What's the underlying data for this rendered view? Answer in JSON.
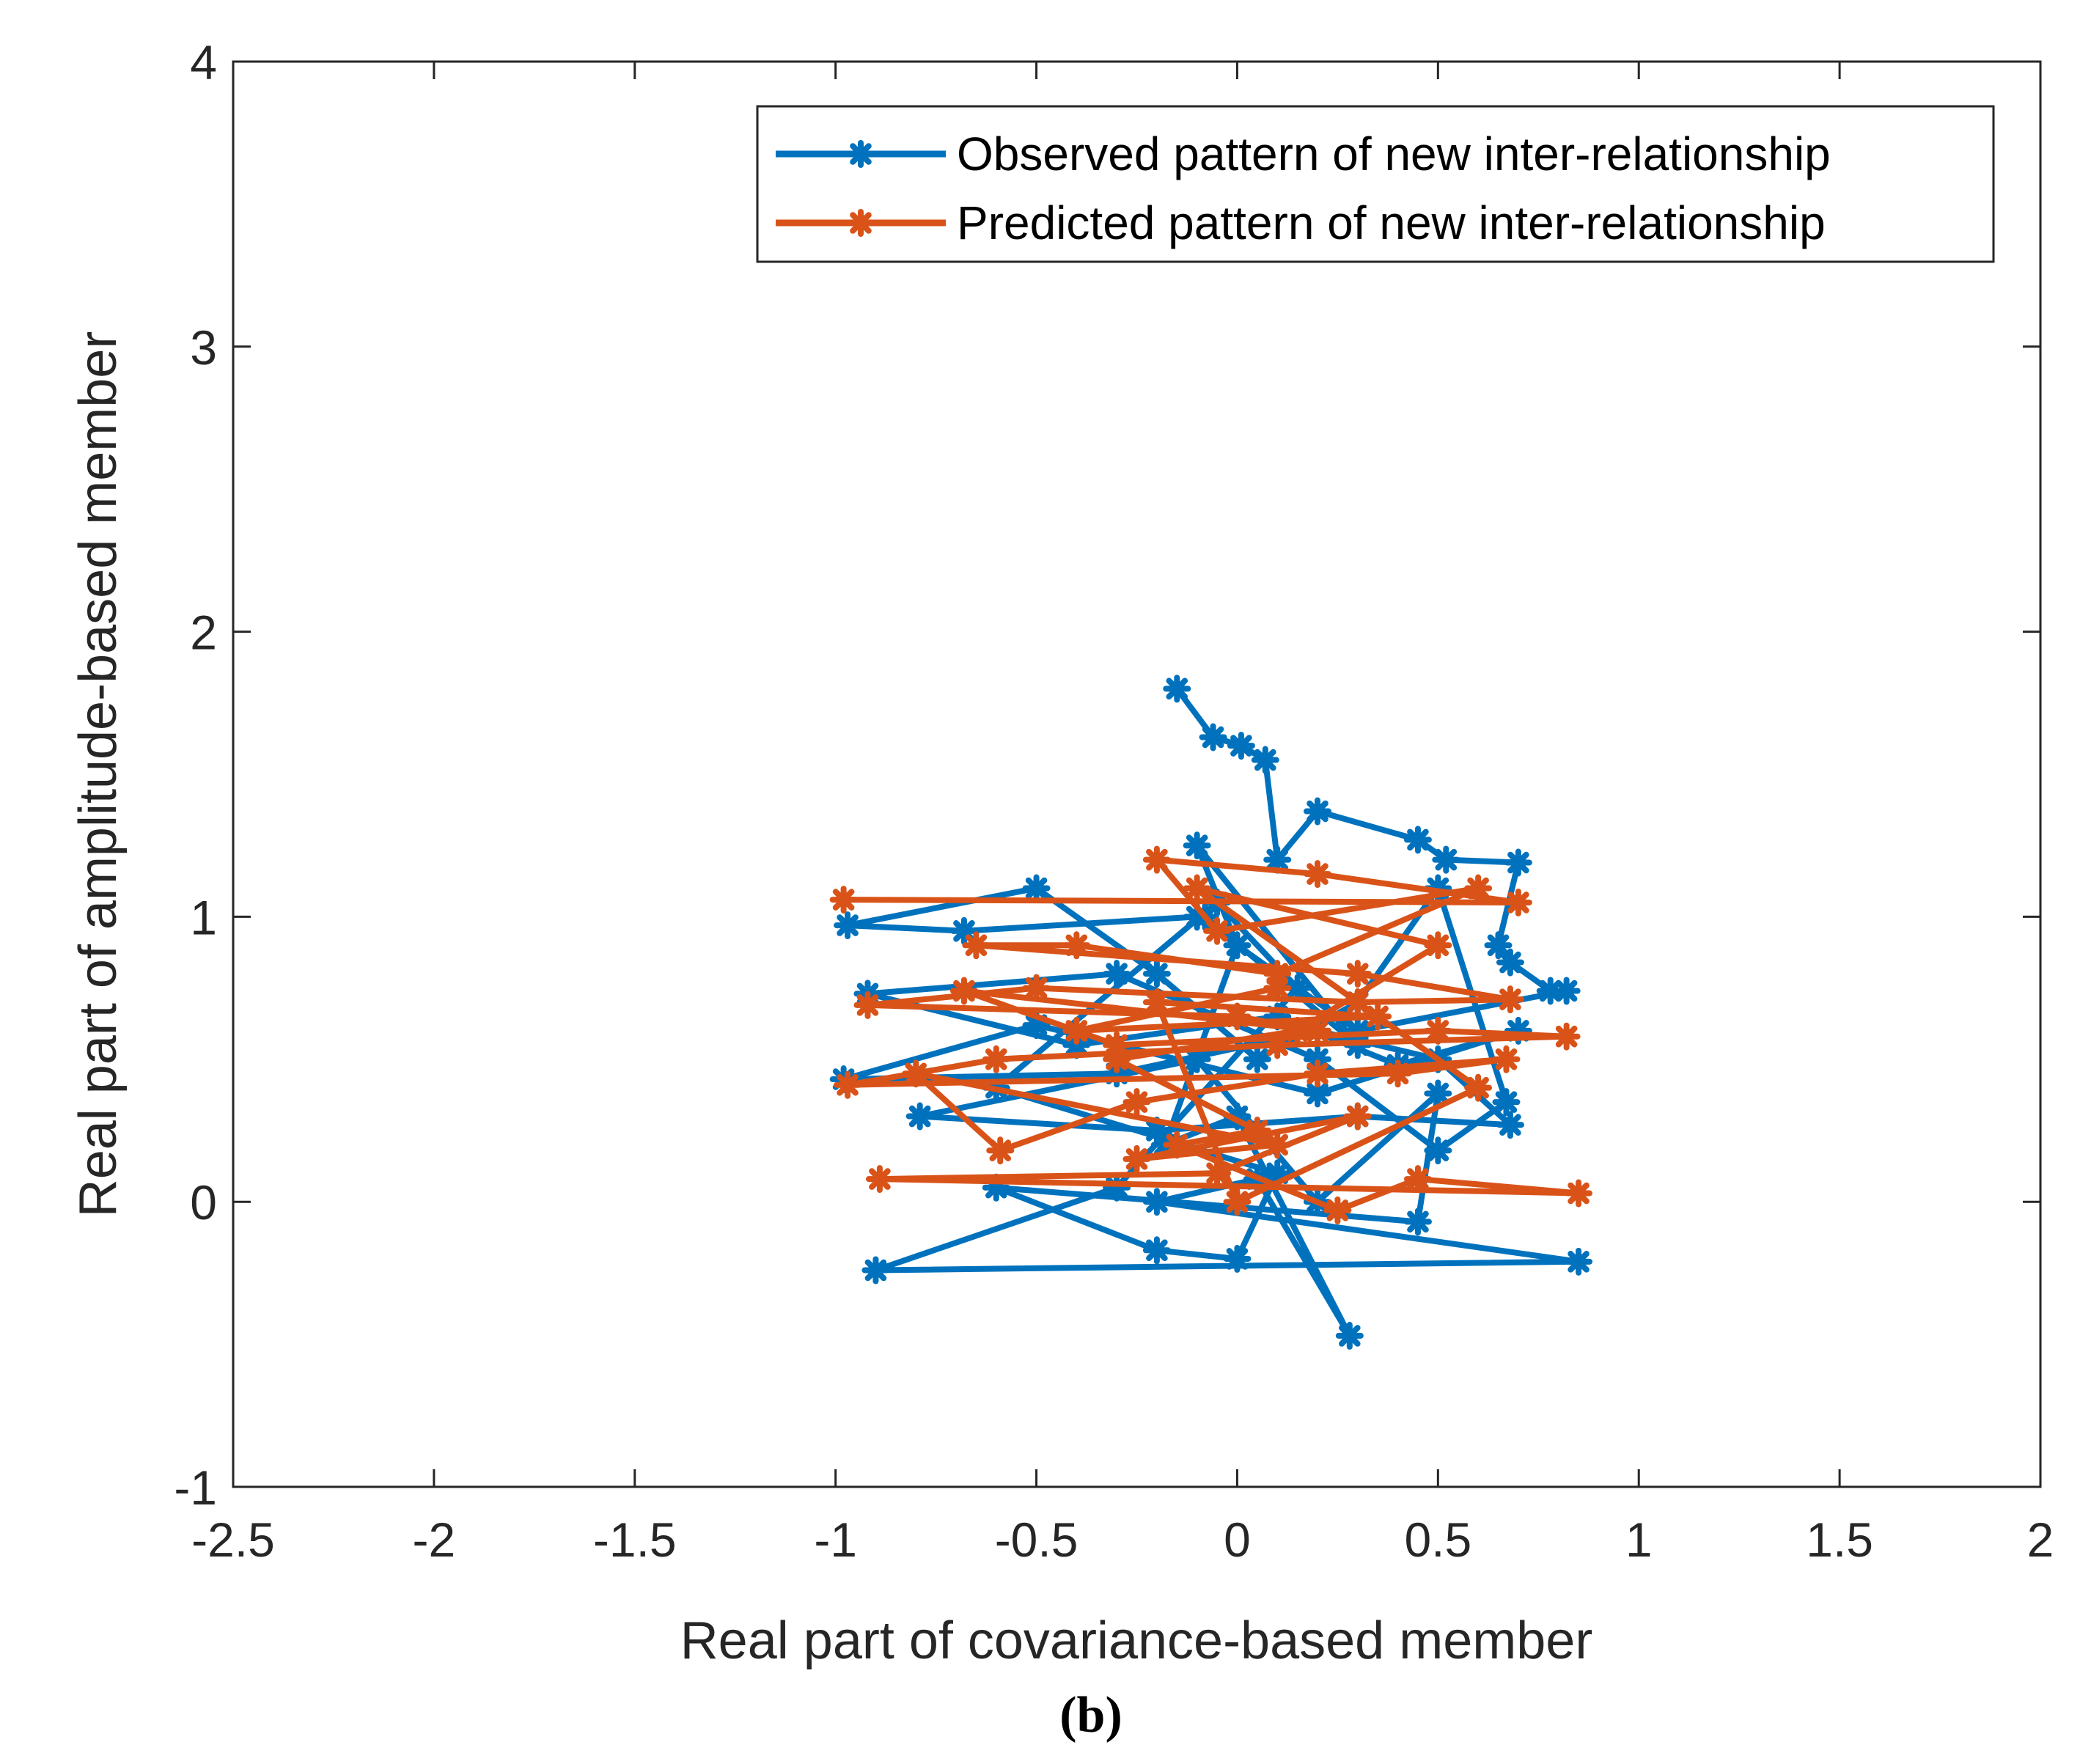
{
  "chart_data": {
    "type": "line",
    "title": "",
    "xlabel": "Real part of covariance-based member",
    "ylabel": "Real part of amplitude-based member",
    "xlim": [
      -2.5,
      2
    ],
    "ylim": [
      -1,
      4
    ],
    "xticks": [
      -2.5,
      -2,
      -1.5,
      -1,
      -0.5,
      0,
      0.5,
      1,
      1.5,
      2
    ],
    "xtick_labels": [
      "-2.5",
      "-2",
      "-1.5",
      "-1",
      "-0.5",
      "0",
      "0.5",
      "1",
      "1.5",
      "2"
    ],
    "yticks": [
      -1,
      0,
      1,
      2,
      3,
      4
    ],
    "ytick_labels": [
      "-1",
      "0",
      "1",
      "2",
      "3",
      "4"
    ],
    "grid": false,
    "legend_position": "top-right",
    "caption": "(b)",
    "series": [
      {
        "name": "Observed pattern of new inter-relationship",
        "color": "#0072BD",
        "marker": "asterisk",
        "x": [
          -0.15,
          -0.06,
          0.01,
          0.07,
          0.1,
          0.2,
          0.45,
          0.52,
          0.7,
          0.65,
          0.68,
          0.78,
          0.82,
          0.3,
          -0.1,
          -0.68,
          -0.97,
          -0.5,
          -0.2,
          0.05,
          0.3,
          0.5,
          0.67,
          0.5,
          0.2,
          -0.3,
          -0.92,
          -0.4,
          0.1,
          0.4,
          0.7,
          0.2,
          -0.5,
          -0.98,
          -0.3,
          0.2,
          0.5,
          0.68,
          0.3,
          -0.2,
          -0.79,
          -0.1,
          0.2,
          0.5,
          0.45,
          -0.6,
          -0.2,
          0.0,
          0.1,
          -0.6,
          -0.05,
          0.15,
          -0.3,
          -0.9,
          0.85,
          -0.2,
          0.05,
          0.28,
          0.0,
          -0.18,
          0.0,
          -0.1,
          0.3,
          -0.08
        ],
        "y": [
          1.8,
          1.63,
          1.6,
          1.55,
          1.2,
          1.37,
          1.27,
          1.2,
          1.19,
          0.9,
          0.84,
          0.74,
          0.74,
          0.6,
          1.0,
          0.95,
          0.97,
          1.1,
          0.8,
          0.5,
          0.7,
          1.1,
          0.35,
          0.18,
          0.5,
          0.8,
          0.73,
          0.55,
          0.65,
          0.48,
          0.6,
          0.38,
          0.62,
          0.43,
          0.45,
          0.6,
          0.5,
          0.27,
          0.3,
          0.25,
          0.3,
          0.5,
          0.0,
          0.38,
          -0.07,
          0.05,
          -0.17,
          -0.2,
          0.1,
          0.4,
          1.05,
          0.75,
          0.05,
          -0.24,
          -0.21,
          0.0,
          0.08,
          -0.47,
          0.3,
          0.2,
          0.9,
          1.25,
          0.55,
          1.0
        ]
      },
      {
        "name": "Predicted pattern of new inter-relationship",
        "color": "#D95319",
        "marker": "asterisk",
        "x": [
          -0.98,
          0.7,
          0.2,
          -0.2,
          -0.05,
          0.6,
          0.1,
          -0.4,
          -0.65,
          0.3,
          0.68,
          0.3,
          -0.5,
          -0.92,
          0.0,
          0.2,
          -0.68,
          -0.3,
          0.5,
          0.82,
          0.1,
          -0.6,
          -0.97,
          0.4,
          0.67,
          0.2,
          -0.25,
          -0.59,
          -0.8,
          0.1,
          -0.25,
          0.3,
          -0.05,
          -0.89,
          0.85,
          0.45,
          0.25,
          -0.15,
          0.05,
          -0.3,
          0.15,
          0.5,
          -0.1,
          0.6,
          0.0,
          -0.2,
          0.35,
          -0.4,
          0.1
        ],
        "y": [
          1.06,
          1.05,
          1.15,
          1.2,
          0.95,
          1.1,
          0.8,
          0.9,
          0.9,
          0.8,
          0.71,
          0.7,
          0.75,
          0.69,
          0.65,
          0.6,
          0.74,
          0.55,
          0.6,
          0.58,
          0.55,
          0.5,
          0.41,
          0.45,
          0.5,
          0.45,
          0.35,
          0.18,
          0.45,
          0.2,
          0.15,
          0.3,
          0.1,
          0.08,
          0.03,
          0.08,
          -0.03,
          0.2,
          0.25,
          0.5,
          0.6,
          0.9,
          1.1,
          0.4,
          0.0,
          0.7,
          0.65,
          0.6,
          0.75
        ]
      }
    ]
  }
}
